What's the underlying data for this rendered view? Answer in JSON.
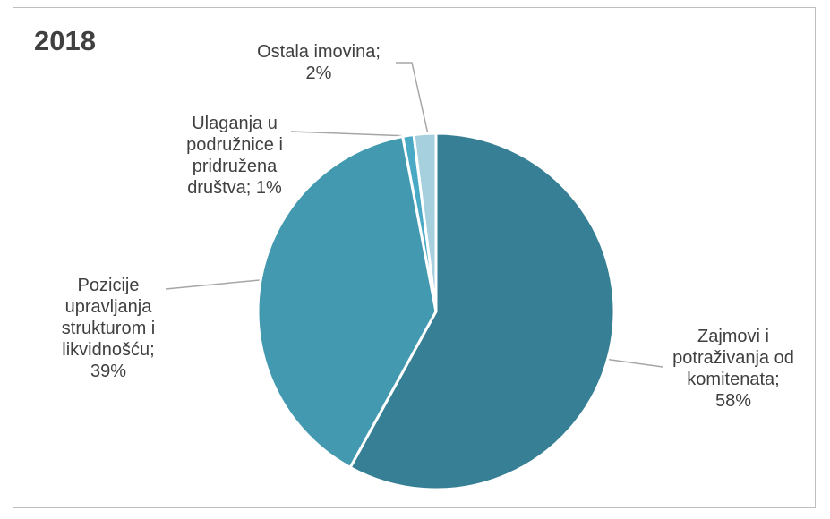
{
  "chart_data": {
    "type": "pie",
    "title": "2018",
    "categories": [
      "Zajmovi i potraživanja od komitenata;",
      "Pozicije upravljanja strukturom i likvidnošću;",
      "Ulaganja u podružnice i pridružena društva;",
      "Ostala imovina;"
    ],
    "values": [
      58,
      39,
      1,
      2
    ],
    "value_labels": [
      "58%",
      "39%",
      "1%",
      "2%"
    ],
    "colors": [
      "#367f94",
      "#4399b0",
      "#4aaac6",
      "#a6d0dd"
    ]
  }
}
